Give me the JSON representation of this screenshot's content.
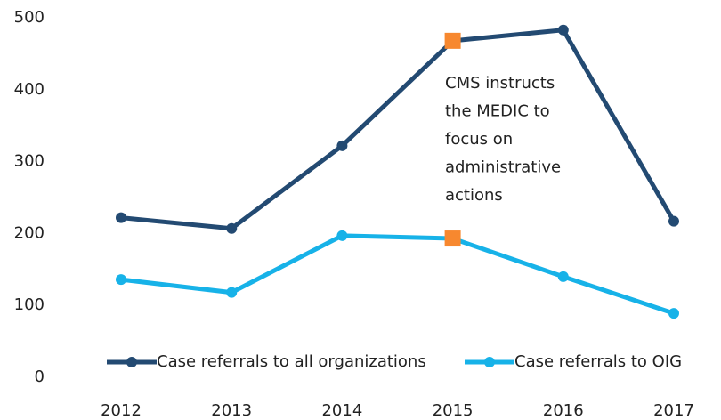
{
  "chart_data": {
    "type": "line",
    "categories": [
      "2012",
      "2013",
      "2014",
      "2015",
      "2016",
      "2017"
    ],
    "series": [
      {
        "name": "Case referrals to all organizations",
        "color": "#234a72",
        "values": [
          222,
          207,
          322,
          468,
          483,
          217
        ]
      },
      {
        "name": "Case referrals to OIG",
        "color": "#17b2e8",
        "values": [
          136,
          118,
          197,
          193,
          140,
          89
        ]
      }
    ],
    "ylim": [
      0,
      500
    ],
    "yticks": [
      0,
      100,
      200,
      300,
      400,
      500
    ],
    "grid": false,
    "legend": "bottom",
    "highlight": {
      "categories": [
        "2015"
      ],
      "color": "#f7882f"
    },
    "annotation": [
      "CMS instructs",
      "the MEDIC to",
      "focus on",
      "administrative",
      "actions"
    ]
  }
}
